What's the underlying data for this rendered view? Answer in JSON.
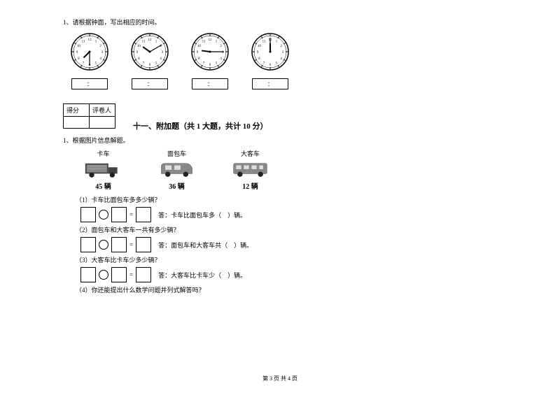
{
  "q1": {
    "prompt": "1、请根据钟面，写出相应的时间。",
    "clocks": [
      {
        "hour": 7,
        "minute": 30,
        "box": "："
      },
      {
        "hour": 10,
        "minute": 10,
        "box": "："
      },
      {
        "hour": 9,
        "minute": 15,
        "box": "："
      },
      {
        "hour": 12,
        "minute": 0,
        "box": "："
      }
    ]
  },
  "score": {
    "c1": "得分",
    "c2": "评卷人"
  },
  "section": "十一、附加题（共 1 大题，共计 10 分）",
  "q2": {
    "prompt": "1、根据图片信息解题。",
    "vehicles": [
      {
        "name": "卡车",
        "count": "45 辆",
        "type": "truck"
      },
      {
        "name": "面包车",
        "count": "36 辆",
        "type": "van"
      },
      {
        "name": "大客车",
        "count": "12 辆",
        "type": "bus"
      }
    ],
    "parts": [
      {
        "label": "（1）卡车比面包车多多少辆？",
        "answer": "答：卡车比面包车多（　）辆。"
      },
      {
        "label": "（2）面包车和大客车一共有多少辆？",
        "answer": "答：面包车和大客车共（　）辆。"
      },
      {
        "label": "（3）大客车比卡车少多少辆？",
        "answer": "答：大客车比卡车少（　）辆。"
      },
      {
        "label": "（4）你还能提出什么数学问题并列式解答吗？",
        "answer": ""
      }
    ],
    "eq": "="
  },
  "footer": "第 3 页 共 4 页",
  "colors": {
    "text": "#000000",
    "bg": "#ffffff",
    "vehicle_fill": "#888888",
    "vehicle_dark": "#444444"
  }
}
